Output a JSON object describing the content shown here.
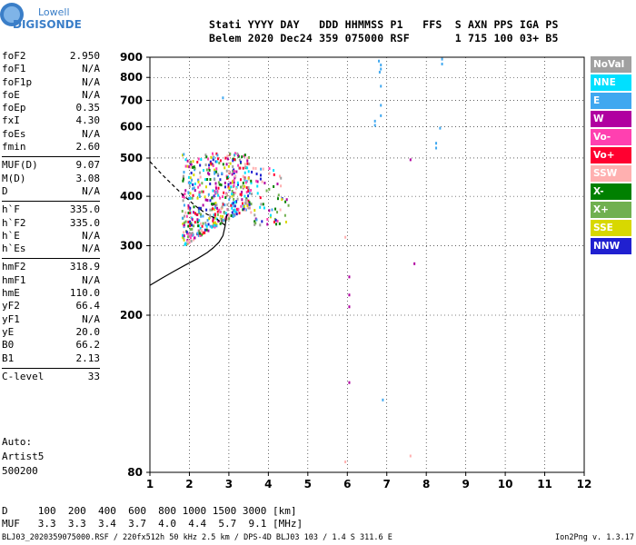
{
  "logo": {
    "line1": "Lowell",
    "line2": "DIGISONDE"
  },
  "header": {
    "line1": "Stati YYYY DAY   DDD HHMMSS P1   FFS  S AXN PPS IGA PS",
    "line2": "Belem 2020 Dec24 359 075000 RSF       1 715 100 03+ B5"
  },
  "params": [
    {
      "group": [
        {
          "label": "foF2",
          "value": "2.950"
        },
        {
          "label": "foF1",
          "value": "N/A"
        },
        {
          "label": "foF1p",
          "value": "N/A"
        },
        {
          "label": "foE",
          "value": "N/A"
        },
        {
          "label": "foEp",
          "value": "0.35"
        },
        {
          "label": "fxI",
          "value": "4.30"
        },
        {
          "label": "foEs",
          "value": "N/A"
        },
        {
          "label": "fmin",
          "value": "2.60"
        }
      ]
    },
    {
      "group": [
        {
          "label": "MUF(D)",
          "value": "9.07"
        },
        {
          "label": "M(D)",
          "value": "3.08"
        },
        {
          "label": "D",
          "value": "N/A"
        }
      ]
    },
    {
      "group": [
        {
          "label": "h`F",
          "value": "335.0"
        },
        {
          "label": "h`F2",
          "value": "335.0"
        },
        {
          "label": "h`E",
          "value": "N/A"
        },
        {
          "label": "h`Es",
          "value": "N/A"
        }
      ]
    },
    {
      "group": [
        {
          "label": "hmF2",
          "value": "318.9"
        },
        {
          "label": "hmF1",
          "value": "N/A"
        },
        {
          "label": "hmE",
          "value": "110.0"
        },
        {
          "label": "yF2",
          "value": "66.4"
        },
        {
          "label": "yF1",
          "value": "N/A"
        },
        {
          "label": "yE",
          "value": "20.0"
        },
        {
          "label": "B0",
          "value": "66.2"
        },
        {
          "label": "B1",
          "value": "2.13"
        }
      ]
    },
    {
      "group": [
        {
          "label": "C-level",
          "value": "33"
        }
      ]
    }
  ],
  "auto": {
    "line1": "Auto:",
    "line2": "Artist5",
    "line3": "500200"
  },
  "legend": [
    {
      "label": "NoVal",
      "color": "#a0a0a0",
      "text": "#ffffff"
    },
    {
      "label": "NNE",
      "color": "#00e0ff",
      "text": "#ffffff"
    },
    {
      "label": "E",
      "color": "#40a8f0",
      "text": "#ffffff"
    },
    {
      "label": "W",
      "color": "#b000a0",
      "text": "#ffffff"
    },
    {
      "label": "Vo-",
      "color": "#ff40b0",
      "text": "#ffffff"
    },
    {
      "label": "Vo+",
      "color": "#ff0030",
      "text": "#ffffff"
    },
    {
      "label": "SSW",
      "color": "#ffb0b0",
      "text": "#ffffff"
    },
    {
      "label": "X-",
      "color": "#008000",
      "text": "#ffffff"
    },
    {
      "label": "X+",
      "color": "#70b050",
      "text": "#ffffff"
    },
    {
      "label": "SSE",
      "color": "#d8d800",
      "text": "#ffffff"
    },
    {
      "label": "NNW",
      "color": "#2020d0",
      "text": "#ffffff"
    }
  ],
  "muf_table": {
    "line1": "D     100  200  400  600  800 1000 1500 3000 [km]",
    "line2": "MUF   3.3  3.3  3.4  3.7  4.0  4.4  5.7  9.1 [MHz]"
  },
  "footer": {
    "left": "BLJ03_2020359075000.RSF / 220fx512h 50 kHz 2.5 km / DPS-4D BLJ03 103 / 1.4 S 311.6 E",
    "right": "Ion2Png v. 1.3.17"
  },
  "chart_data": {
    "type": "scatter",
    "x_ticks": [
      "1",
      "2",
      "3",
      "4",
      "5",
      "6",
      "7",
      "8",
      "9",
      "10",
      "11",
      "12"
    ],
    "y_ticks": [
      "80",
      "200",
      "300",
      "400",
      "500",
      "600",
      "700",
      "800",
      "900"
    ],
    "xlim": [
      1,
      12
    ],
    "ylim": [
      80,
      900
    ],
    "y_scale": "log",
    "grid": true,
    "echo_clusters": [
      {
        "name": "F-trace",
        "x_range": [
          1.8,
          3.5
        ],
        "y_range": [
          295,
          520
        ]
      },
      {
        "name": "F-spread",
        "x_range": [
          3.5,
          4.5
        ],
        "y_range": [
          340,
          480
        ]
      }
    ],
    "echo_points": [
      {
        "x": 2.85,
        "y": 710,
        "color": "#40a8f0"
      },
      {
        "x": 6.8,
        "y": 880,
        "color": "#40a8f0"
      },
      {
        "x": 6.85,
        "y": 860,
        "color": "#40a8f0"
      },
      {
        "x": 6.85,
        "y": 840,
        "color": "#40a8f0"
      },
      {
        "x": 6.82,
        "y": 825,
        "color": "#40a8f0"
      },
      {
        "x": 6.85,
        "y": 760,
        "color": "#40a8f0"
      },
      {
        "x": 6.85,
        "y": 680,
        "color": "#40a8f0"
      },
      {
        "x": 6.85,
        "y": 640,
        "color": "#40a8f0"
      },
      {
        "x": 6.7,
        "y": 620,
        "color": "#40a8f0"
      },
      {
        "x": 6.7,
        "y": 605,
        "color": "#40a8f0"
      },
      {
        "x": 8.4,
        "y": 890,
        "color": "#40a8f0"
      },
      {
        "x": 8.4,
        "y": 865,
        "color": "#40a8f0"
      },
      {
        "x": 8.35,
        "y": 595,
        "color": "#40a8f0"
      },
      {
        "x": 8.25,
        "y": 545,
        "color": "#40a8f0"
      },
      {
        "x": 8.25,
        "y": 530,
        "color": "#40a8f0"
      },
      {
        "x": 6.9,
        "y": 122,
        "color": "#40a8f0"
      },
      {
        "x": 7.6,
        "y": 495,
        "color": "#b000a0"
      },
      {
        "x": 7.7,
        "y": 270,
        "color": "#b000a0"
      },
      {
        "x": 6.05,
        "y": 250,
        "color": "#b000a0"
      },
      {
        "x": 6.05,
        "y": 225,
        "color": "#b000a0"
      },
      {
        "x": 6.05,
        "y": 210,
        "color": "#b000a0"
      },
      {
        "x": 6.05,
        "y": 135,
        "color": "#b000a0"
      },
      {
        "x": 5.95,
        "y": 315,
        "color": "#ffb0b0"
      },
      {
        "x": 5.95,
        "y": 85,
        "color": "#ffb0b0"
      },
      {
        "x": 4.2,
        "y": 340,
        "color": "#008000"
      },
      {
        "x": 7.6,
        "y": 88,
        "color": "#ffb0b0"
      }
    ],
    "curves": [
      {
        "name": "o-trace",
        "style": "solid",
        "points": [
          [
            1,
            238
          ],
          [
            1.3,
            248
          ],
          [
            1.6,
            258
          ],
          [
            1.9,
            268
          ],
          [
            2.2,
            278
          ],
          [
            2.45,
            288
          ],
          [
            2.6,
            296
          ],
          [
            2.75,
            306
          ],
          [
            2.85,
            318
          ],
          [
            2.9,
            335
          ],
          [
            2.95,
            360
          ]
        ]
      },
      {
        "name": "extrapolation",
        "style": "dashed",
        "points": [
          [
            1,
            490
          ],
          [
            1.3,
            455
          ],
          [
            1.6,
            425
          ],
          [
            1.9,
            398
          ],
          [
            2.2,
            375
          ],
          [
            2.45,
            360
          ],
          [
            2.7,
            350
          ],
          [
            2.9,
            338
          ]
        ]
      }
    ]
  }
}
